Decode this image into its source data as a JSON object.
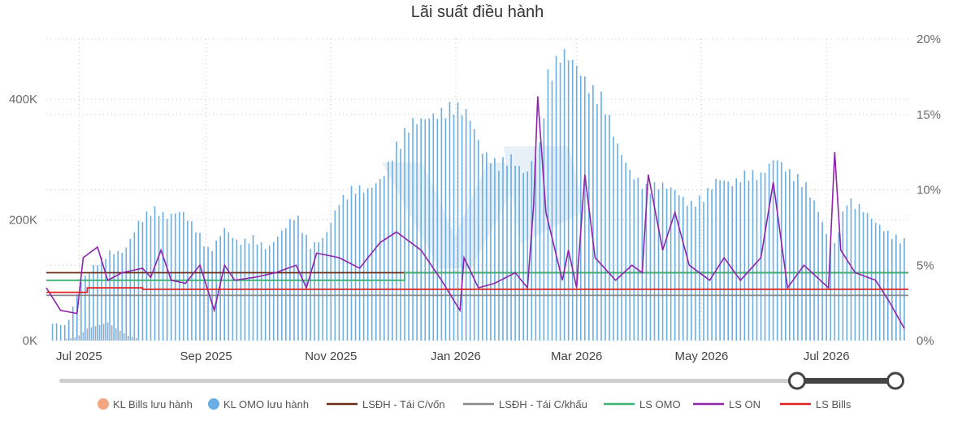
{
  "chart_data": {
    "type": "bar",
    "title": "Lãi suất điều hành",
    "xlabel": "",
    "ylabel": "",
    "x_tick_labels": [
      "Jul 2025",
      "Sep 2025",
      "Nov 2025",
      "Jan 2026",
      "Mar 2026",
      "May 2026",
      "Jul 2026"
    ],
    "y_left": {
      "ticks": [
        "0K",
        "200K",
        "400K"
      ],
      "tick_values": [
        0,
        200000,
        400000
      ],
      "ylim": [
        0,
        500000
      ]
    },
    "y_right": {
      "ticks": [
        "0%",
        "5%",
        "10%",
        "15%",
        "20%"
      ],
      "tick_values": [
        0,
        5,
        10,
        15,
        20
      ],
      "ylim": [
        0,
        20
      ]
    },
    "grid": true,
    "legend_position": "bottom",
    "colors": {
      "kl_bills": "#f4a582",
      "kl_omo": "#6aaee3",
      "lsdh_tai_cap_von": "#6b2d12",
      "lsdh_tai_chiet_khau": "#888888",
      "ls_omo": "#3cb371",
      "ls_on": "#8e24aa",
      "ls_bills": "#e02020"
    },
    "x_range": [
      "2025-06-15",
      "2026-08-10"
    ],
    "series": [
      {
        "name": "KL Bills lưu hành",
        "kind": "bar",
        "axis": "left",
        "x": [
          "2025-06-25",
          "2025-06-30",
          "2025-07-05",
          "2025-07-10",
          "2025-07-15",
          "2025-07-20",
          "2025-07-25",
          "2025-07-30"
        ],
        "values": [
          3000,
          6000,
          20000,
          25000,
          30000,
          18000,
          8000,
          3000
        ]
      },
      {
        "name": "KL OMO lưu hành",
        "kind": "bar",
        "axis": "left",
        "x": [
          "2025-06-18",
          "2025-06-25",
          "2025-07-02",
          "2025-07-09",
          "2025-07-16",
          "2025-07-23",
          "2025-07-30",
          "2025-08-06",
          "2025-08-13",
          "2025-08-20",
          "2025-08-27",
          "2025-09-03",
          "2025-09-10",
          "2025-09-17",
          "2025-09-24",
          "2025-10-01",
          "2025-10-08",
          "2025-10-15",
          "2025-10-22",
          "2025-10-29",
          "2025-11-05",
          "2025-11-12",
          "2025-11-19",
          "2025-11-26",
          "2025-12-03",
          "2025-12-10",
          "2025-12-17",
          "2025-12-24",
          "2025-12-31",
          "2026-01-07",
          "2026-01-14",
          "2026-01-21",
          "2026-01-28",
          "2026-02-04",
          "2026-02-11",
          "2026-02-15",
          "2026-02-22",
          "2026-02-28",
          "2026-03-07",
          "2026-03-14",
          "2026-03-21",
          "2026-03-28",
          "2026-04-04",
          "2026-04-11",
          "2026-04-18",
          "2026-04-25",
          "2026-05-02",
          "2026-05-09",
          "2026-05-16",
          "2026-05-23",
          "2026-05-30",
          "2026-06-06",
          "2026-06-13",
          "2026-06-20",
          "2026-06-27",
          "2026-07-04",
          "2026-07-11",
          "2026-07-18",
          "2026-07-25",
          "2026-08-01",
          "2026-08-08"
        ],
        "values": [
          30000,
          25000,
          100000,
          130000,
          150000,
          150000,
          200000,
          225000,
          210000,
          220000,
          190000,
          150000,
          190000,
          165000,
          175000,
          155000,
          185000,
          215000,
          160000,
          175000,
          235000,
          260000,
          255000,
          275000,
          330000,
          370000,
          375000,
          385000,
          400000,
          385000,
          320000,
          300000,
          310000,
          280000,
          330000,
          450000,
          490000,
          470000,
          430000,
          410000,
          330000,
          280000,
          260000,
          265000,
          255000,
          230000,
          245000,
          275000,
          265000,
          285000,
          280000,
          310000,
          285000,
          270000,
          220000,
          150000,
          240000,
          225000,
          200000,
          180000,
          170000
        ]
      },
      {
        "name": "LSĐH - Tái C/vốn",
        "kind": "line",
        "axis": "right",
        "x": [
          "2025-06-15",
          "2026-08-10"
        ],
        "values": [
          4.5,
          4.5
        ]
      },
      {
        "name": "LSĐH - Tái C/khấu",
        "kind": "line",
        "axis": "right",
        "x": [
          "2025-06-15",
          "2026-08-10"
        ],
        "values": [
          3.0,
          3.0
        ]
      },
      {
        "name": "LS OMO",
        "kind": "line",
        "axis": "right",
        "x": [
          "2025-06-15",
          "2025-12-07",
          "2025-12-07",
          "2026-08-10"
        ],
        "values": [
          4.0,
          4.0,
          4.5,
          4.5
        ]
      },
      {
        "name": "LS ON",
        "kind": "line",
        "axis": "right",
        "x": [
          "2025-06-15",
          "2025-06-22",
          "2025-06-30",
          "2025-07-03",
          "2025-07-10",
          "2025-07-15",
          "2025-07-22",
          "2025-08-01",
          "2025-08-05",
          "2025-08-10",
          "2025-08-15",
          "2025-08-22",
          "2025-08-29",
          "2025-09-05",
          "2025-09-10",
          "2025-09-15",
          "2025-09-25",
          "2025-10-05",
          "2025-10-15",
          "2025-10-20",
          "2025-10-25",
          "2025-11-05",
          "2025-11-15",
          "2025-11-25",
          "2025-12-03",
          "2025-12-15",
          "2025-12-25",
          "2026-01-03",
          "2026-01-05",
          "2026-01-12",
          "2026-01-20",
          "2026-01-30",
          "2026-02-05",
          "2026-02-08",
          "2026-02-10",
          "2026-02-14",
          "2026-02-22",
          "2026-02-25",
          "2026-03-01",
          "2026-03-05",
          "2026-03-10",
          "2026-03-20",
          "2026-03-28",
          "2026-04-02",
          "2026-04-05",
          "2026-04-12",
          "2026-04-18",
          "2026-04-25",
          "2026-05-05",
          "2026-05-12",
          "2026-05-20",
          "2026-05-30",
          "2026-06-05",
          "2026-06-12",
          "2026-06-20",
          "2026-06-28",
          "2026-07-02",
          "2026-07-05",
          "2026-07-08",
          "2026-07-15",
          "2026-07-25",
          "2026-08-01",
          "2026-08-08"
        ],
        "values": [
          3.5,
          2.0,
          1.8,
          5.5,
          6.2,
          4.0,
          4.5,
          4.8,
          4.2,
          6.0,
          4.0,
          3.8,
          5.0,
          2.0,
          5.0,
          4.0,
          4.2,
          4.5,
          5.0,
          3.5,
          5.8,
          5.5,
          4.8,
          6.5,
          7.2,
          6.0,
          4.0,
          2.0,
          5.5,
          3.5,
          3.8,
          4.5,
          3.5,
          9.0,
          16.2,
          8.5,
          4.0,
          6.0,
          3.5,
          11.0,
          5.5,
          4.0,
          5.0,
          4.5,
          11.0,
          6.0,
          8.5,
          5.0,
          4.0,
          5.5,
          4.0,
          5.5,
          10.5,
          3.5,
          5.0,
          4.0,
          3.5,
          12.5,
          6.0,
          4.5,
          4.0,
          2.5,
          0.8
        ]
      },
      {
        "name": "LS Bills",
        "kind": "line",
        "axis": "right",
        "x": [
          "2025-06-15",
          "2025-07-05",
          "2025-07-05",
          "2025-08-01",
          "2025-08-01",
          "2026-08-10"
        ],
        "values": [
          3.2,
          3.2,
          3.5,
          3.5,
          3.4,
          3.4
        ]
      }
    ]
  },
  "scrollbar": {
    "label": "range-slider"
  }
}
